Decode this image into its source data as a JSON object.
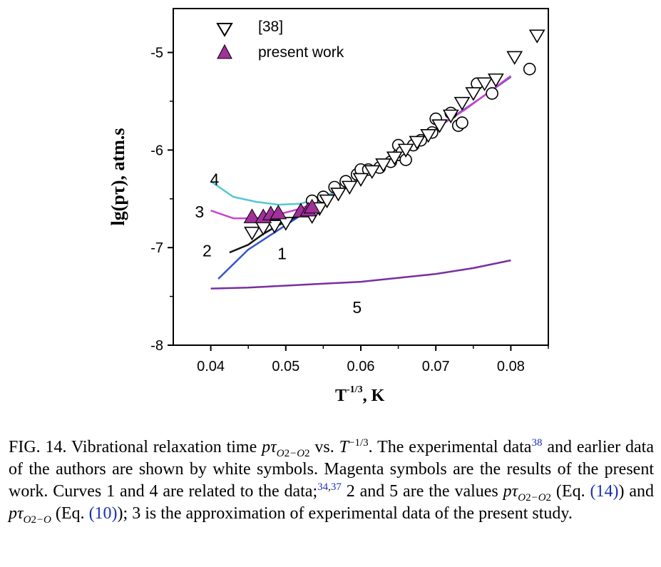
{
  "chart_data": {
    "type": "scatter",
    "title": "",
    "xlabel_main": "T",
    "xlabel_sup": "-1/3",
    "xlabel_unit": ", K",
    "ylabel": "lg(pτ), atm.s",
    "xlim": [
      0.035,
      0.085
    ],
    "ylim": [
      -8,
      -4.55
    ],
    "x_ticks": [
      0.04,
      0.05,
      0.06,
      0.07,
      0.08
    ],
    "x_tick_labels": [
      "0.04",
      "0.05",
      "0.06",
      "0.07",
      "0.08"
    ],
    "y_ticks": [
      -8,
      -7,
      -6,
      -5
    ],
    "y_tick_labels": [
      "-8",
      "-7",
      "-6",
      "-5"
    ],
    "legend_position": "top-left",
    "legend": [
      {
        "marker": "down-triangle-open",
        "label": "[38]"
      },
      {
        "marker": "up-triangle-filled",
        "label": "present work"
      }
    ],
    "colors": {
      "curve1": "#3355cc",
      "curve2": "#111111",
      "curve3": "#cc44cc",
      "curve4": "#55c8d0",
      "curve5": "#7a2ea0",
      "present_work": "#a0309a"
    },
    "series": [
      {
        "id": "curve1",
        "label": "1",
        "label_pos": [
          0.0495,
          -7.12
        ],
        "x": [
          0.041,
          0.045,
          0.05,
          0.055,
          0.06,
          0.065,
          0.07,
          0.075,
          0.08
        ],
        "y": [
          -7.32,
          -7.02,
          -6.77,
          -6.52,
          -6.28,
          -6.02,
          -5.78,
          -5.52,
          -5.25
        ]
      },
      {
        "id": "curve2",
        "label": "2",
        "label_pos": [
          0.0395,
          -7.09
        ],
        "x": [
          0.0425,
          0.045,
          0.047,
          0.049,
          0.051,
          0.053,
          0.055
        ],
        "y": [
          -7.05,
          -6.97,
          -6.86,
          -6.77,
          -6.7,
          -6.64,
          -6.58
        ]
      },
      {
        "id": "curve3",
        "label": "3",
        "label_pos": [
          0.0385,
          -6.69
        ],
        "x": [
          0.04,
          0.043,
          0.046,
          0.049,
          0.052,
          0.055,
          0.058,
          0.062,
          0.066,
          0.07,
          0.074,
          0.08
        ],
        "y": [
          -6.62,
          -6.7,
          -6.7,
          -6.66,
          -6.6,
          -6.5,
          -6.38,
          -6.2,
          -6.0,
          -5.78,
          -5.58,
          -5.24
        ]
      },
      {
        "id": "curve4",
        "label": "4",
        "label_pos": [
          0.0405,
          -6.36
        ],
        "x": [
          0.04,
          0.043,
          0.046,
          0.049,
          0.052,
          0.055,
          0.058,
          0.062
        ],
        "y": [
          -6.32,
          -6.48,
          -6.53,
          -6.56,
          -6.55,
          -6.48,
          -6.38,
          -6.2
        ]
      },
      {
        "id": "curve5",
        "label": "5",
        "label_pos": [
          0.0595,
          -7.67
        ],
        "x": [
          0.04,
          0.045,
          0.05,
          0.055,
          0.06,
          0.065,
          0.07,
          0.075,
          0.08
        ],
        "y": [
          -7.42,
          -7.41,
          -7.39,
          -7.37,
          -7.35,
          -7.31,
          -7.27,
          -7.21,
          -7.13
        ]
      }
    ],
    "points_ref38": [
      [
        0.0455,
        -6.85
      ],
      [
        0.047,
        -6.8
      ],
      [
        0.0485,
        -6.78
      ],
      [
        0.05,
        -6.75
      ],
      [
        0.0535,
        -6.68
      ],
      [
        0.0545,
        -6.6
      ],
      [
        0.0555,
        -6.52
      ],
      [
        0.057,
        -6.45
      ],
      [
        0.0585,
        -6.38
      ],
      [
        0.06,
        -6.3
      ],
      [
        0.0615,
        -6.22
      ],
      [
        0.063,
        -6.15
      ],
      [
        0.0645,
        -6.08
      ],
      [
        0.066,
        -6.0
      ],
      [
        0.0675,
        -5.92
      ],
      [
        0.069,
        -5.85
      ],
      [
        0.0705,
        -5.75
      ],
      [
        0.072,
        -5.65
      ],
      [
        0.0735,
        -5.52
      ],
      [
        0.075,
        -5.42
      ],
      [
        0.0765,
        -5.32
      ],
      [
        0.078,
        -5.28
      ],
      [
        0.0805,
        -5.05
      ],
      [
        0.0835,
        -4.83
      ]
    ],
    "points_earlier": [
      [
        0.0535,
        -6.52
      ],
      [
        0.055,
        -6.48
      ],
      [
        0.0565,
        -6.38
      ],
      [
        0.058,
        -6.32
      ],
      [
        0.0595,
        -6.25
      ],
      [
        0.06,
        -6.2
      ],
      [
        0.061,
        -6.2
      ],
      [
        0.0625,
        -6.18
      ],
      [
        0.064,
        -6.12
      ],
      [
        0.065,
        -6.05
      ],
      [
        0.065,
        -5.95
      ],
      [
        0.0655,
        -6.02
      ],
      [
        0.066,
        -6.1
      ],
      [
        0.067,
        -5.95
      ],
      [
        0.068,
        -5.9
      ],
      [
        0.0695,
        -5.82
      ],
      [
        0.07,
        -5.68
      ],
      [
        0.072,
        -5.62
      ],
      [
        0.073,
        -5.75
      ],
      [
        0.0735,
        -5.72
      ],
      [
        0.0755,
        -5.32
      ],
      [
        0.0775,
        -5.42
      ],
      [
        0.0825,
        -5.17
      ]
    ],
    "points_present": [
      [
        0.0455,
        -6.68
      ],
      [
        0.047,
        -6.68
      ],
      [
        0.048,
        -6.65
      ],
      [
        0.049,
        -6.64
      ],
      [
        0.052,
        -6.62
      ],
      [
        0.053,
        -6.61
      ],
      [
        0.0535,
        -6.58
      ]
    ]
  },
  "caption": {
    "fig_label": "FIG. 14.",
    "p1": " Vibrational relaxation time ",
    "pt": "pτ",
    "sub_o2o2": "O",
    "sub_o2o2_rest": "2",
    "sub_mid": "−O",
    "vs": " vs. ",
    "T": "T",
    "Tsup": "−1/3",
    "p2": ". The experimental data",
    "ref38": "38",
    "p3": " and earlier data of the authors are shown by white symbols. Magenta symbols are the results of the present work. Curves 1 and 4 are related to the data;",
    "ref34": "34",
    "comma": ",",
    "ref37": "37",
    "p4": " 2 and 5 are the values ",
    "eq14_open": " (Eq. ",
    "eq14": "(14)",
    "eq14_close": ") and ",
    "sub_o2o": "O",
    "eq10_open": " (Eq. ",
    "eq10": "(10)",
    "eq10_close": ");",
    "p5": " 3 is the approximation of experimental data of the present study."
  }
}
